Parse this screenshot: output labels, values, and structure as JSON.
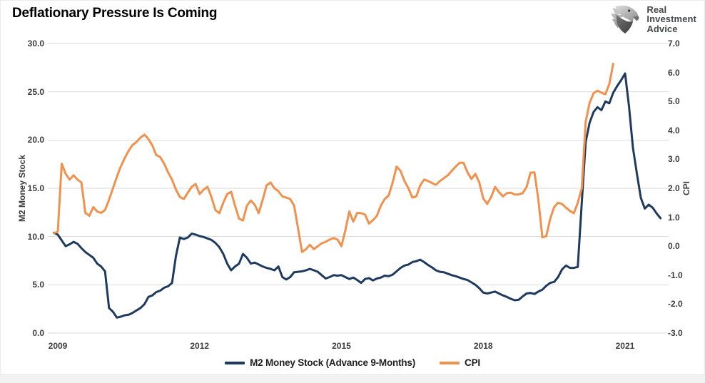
{
  "page": {
    "title": "Deflationary Pressure Is Coming"
  },
  "logo": {
    "line1": "Real",
    "line2": "Investment",
    "line3": "Advice",
    "icon": "eagle-icon"
  },
  "colors": {
    "m2_line": "#1f3a5f",
    "cpi_line": "#f0914e",
    "grid": "#d9d9d9",
    "tick_text": "#3d3d3d",
    "title_text": "#000000",
    "logo_text": "#46484b",
    "footer_strip": "#f2f2f2"
  },
  "chart_data": {
    "type": "line",
    "title": "Deflationary Pressure Is Coming",
    "grid": true,
    "legend_position": "bottom",
    "x_axis": {
      "tick_labels": [
        "2009",
        "2012",
        "2015",
        "2018",
        "2021"
      ],
      "start_year": 2009,
      "tick_interval_years": 3,
      "points_are_monthly": true,
      "first_point_month_offset": -1
    },
    "left_axis": {
      "label": "M2 Money Stock",
      "min": 0,
      "max": 30,
      "tick_step": 5,
      "tick_labels": [
        "30.0",
        "25.0",
        "20.0",
        "15.0",
        "10.0",
        "5.0",
        "0.0"
      ]
    },
    "right_axis": {
      "label": "CPI",
      "min": -3,
      "max": 7,
      "tick_step": 1,
      "tick_labels": [
        "7.0",
        "6.0",
        "5.0",
        "4.0",
        "3.0",
        "2.0",
        "1.0",
        "0.0",
        "-1.0",
        "-2.0",
        "-3.0"
      ]
    },
    "series": [
      {
        "name": "M2 Money Stock (Advance 9-Months)",
        "axis": "left",
        "color": "#1f3a5f",
        "values": [
          10.4,
          10.2,
          9.6,
          9.0,
          9.2,
          9.45,
          9.25,
          8.8,
          8.4,
          8.1,
          7.8,
          7.2,
          6.9,
          6.4,
          2.6,
          2.2,
          1.6,
          1.7,
          1.85,
          1.9,
          2.1,
          2.35,
          2.6,
          3.0,
          3.75,
          3.9,
          4.25,
          4.4,
          4.7,
          4.85,
          5.2,
          8.0,
          9.9,
          9.75,
          9.9,
          10.3,
          10.2,
          10.05,
          9.95,
          9.8,
          9.65,
          9.35,
          8.9,
          8.2,
          7.2,
          6.5,
          6.9,
          7.2,
          8.2,
          7.8,
          7.2,
          7.3,
          7.1,
          6.9,
          6.75,
          6.65,
          6.5,
          6.9,
          5.8,
          5.55,
          5.8,
          6.3,
          6.35,
          6.4,
          6.5,
          6.65,
          6.5,
          6.35,
          6.0,
          5.65,
          5.8,
          6.0,
          5.95,
          6.0,
          5.8,
          5.6,
          5.75,
          5.5,
          5.2,
          5.6,
          5.7,
          5.45,
          5.65,
          5.75,
          5.95,
          5.9,
          6.05,
          6.4,
          6.75,
          7.0,
          7.1,
          7.35,
          7.45,
          7.6,
          7.35,
          7.05,
          6.8,
          6.5,
          6.35,
          6.3,
          6.15,
          6.0,
          5.9,
          5.75,
          5.6,
          5.5,
          5.25,
          5.0,
          4.65,
          4.2,
          4.1,
          4.2,
          4.3,
          4.1,
          3.9,
          3.75,
          3.55,
          3.4,
          3.45,
          3.8,
          4.1,
          4.15,
          4.05,
          4.3,
          4.5,
          4.9,
          5.2,
          5.3,
          5.8,
          6.6,
          7.0,
          6.75,
          6.75,
          6.85,
          13.5,
          19.8,
          21.8,
          22.9,
          23.4,
          23.1,
          24.0,
          23.8,
          24.9,
          25.6,
          26.2,
          26.9,
          23.5,
          19.2,
          16.5,
          14.0,
          12.9,
          13.3,
          13.0,
          12.4,
          11.9
        ]
      },
      {
        "name": "CPI",
        "axis": "right",
        "color": "#f0914e",
        "values": [
          0.45,
          0.5,
          2.85,
          2.5,
          2.3,
          2.45,
          2.3,
          2.2,
          1.15,
          1.05,
          1.35,
          1.2,
          1.15,
          1.25,
          1.6,
          2.0,
          2.4,
          2.75,
          3.05,
          3.3,
          3.5,
          3.6,
          3.75,
          3.85,
          3.7,
          3.48,
          3.15,
          3.08,
          2.85,
          2.55,
          2.3,
          1.95,
          1.7,
          1.63,
          1.85,
          2.05,
          2.15,
          1.8,
          1.95,
          2.05,
          1.7,
          1.25,
          1.14,
          1.5,
          1.8,
          1.88,
          1.4,
          0.95,
          0.89,
          1.4,
          1.58,
          1.43,
          1.14,
          1.6,
          2.1,
          2.2,
          2.0,
          1.9,
          1.72,
          1.68,
          1.63,
          1.4,
          0.6,
          -0.2,
          -0.1,
          0.05,
          -0.1,
          0.0,
          0.1,
          0.15,
          0.23,
          0.28,
          0.23,
          0.0,
          0.55,
          1.2,
          0.85,
          1.15,
          1.14,
          1.09,
          0.78,
          0.9,
          1.05,
          1.4,
          1.63,
          1.75,
          2.2,
          2.75,
          2.6,
          2.25,
          2.0,
          1.68,
          1.72,
          2.1,
          2.3,
          2.25,
          2.18,
          2.12,
          2.25,
          2.35,
          2.45,
          2.6,
          2.75,
          2.88,
          2.88,
          2.55,
          2.32,
          2.5,
          2.2,
          1.65,
          1.46,
          1.7,
          2.05,
          1.87,
          1.72,
          1.83,
          1.85,
          1.78,
          1.79,
          1.83,
          2.05,
          2.54,
          2.55,
          1.6,
          0.3,
          0.35,
          0.95,
          1.35,
          1.5,
          1.46,
          1.33,
          1.22,
          1.14,
          1.5,
          2.0,
          4.3,
          4.95,
          5.28,
          5.37,
          5.3,
          5.25,
          5.6,
          6.3
        ]
      }
    ]
  }
}
